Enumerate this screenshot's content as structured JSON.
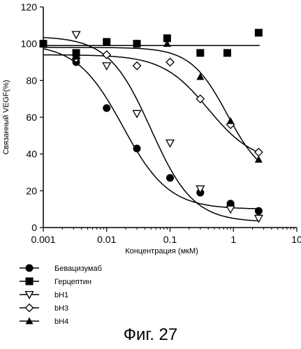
{
  "figure": {
    "caption": "Фиг. 27"
  },
  "chart_data": {
    "type": "scatter",
    "xlabel": "Концентрация (мкМ)",
    "ylabel": "Связанный VEGF(%)",
    "xscale": "log",
    "xlim": [
      0.001,
      10
    ],
    "ylim": [
      0,
      120
    ],
    "xticks": [
      "0.001",
      "0.01",
      "0.1",
      "1",
      "10"
    ],
    "yticks": [
      "0",
      "20",
      "40",
      "60",
      "80",
      "100",
      "120"
    ],
    "legend_position": "bottom-left (below axes)",
    "grid": false,
    "series": [
      {
        "name": "Бевацизумаб",
        "marker": "filled-circle",
        "x": [
          0.001,
          0.0033,
          0.01,
          0.03,
          0.1,
          0.3,
          0.9,
          2.5
        ],
        "y": [
          100,
          90,
          65,
          43,
          27,
          19,
          13,
          9
        ],
        "fit": {
          "top": 100,
          "bottom": 10,
          "ec50": 0.018,
          "hill": 1.2
        }
      },
      {
        "name": "Герцептин",
        "marker": "filled-square",
        "x": [
          0.001,
          0.0033,
          0.01,
          0.03,
          0.09,
          0.3,
          0.8,
          2.5
        ],
        "y": [
          100,
          95,
          101,
          100,
          103,
          95,
          95,
          106
        ],
        "fit": {
          "flat": 99
        }
      },
      {
        "name": "bH1",
        "marker": "open-triangle-down",
        "x": [
          0.0033,
          0.01,
          0.03,
          0.1,
          0.3,
          0.9,
          2.5
        ],
        "y": [
          105,
          88,
          62,
          46,
          21,
          10,
          5
        ],
        "fit": {
          "top": 104,
          "bottom": 3,
          "ec50": 0.05,
          "hill": 1.3
        }
      },
      {
        "name": "bH3",
        "marker": "open-diamond",
        "x": [
          0.0033,
          0.01,
          0.03,
          0.1,
          0.3,
          0.9,
          2.5
        ],
        "y": [
          92,
          94,
          88,
          90,
          70,
          56,
          41
        ],
        "fit": {
          "top": 94,
          "bottom": 35,
          "ec50": 0.4,
          "hill": 1.2
        }
      },
      {
        "name": "bH4",
        "marker": "filled-triangle-up",
        "x": [
          0.0033,
          0.09,
          0.3,
          0.9,
          2.5
        ],
        "y": [
          93,
          100,
          82,
          58,
          37
        ],
        "fit": {
          "top": 98,
          "bottom": 25,
          "ec50": 0.8,
          "hill": 1.5
        }
      }
    ]
  }
}
